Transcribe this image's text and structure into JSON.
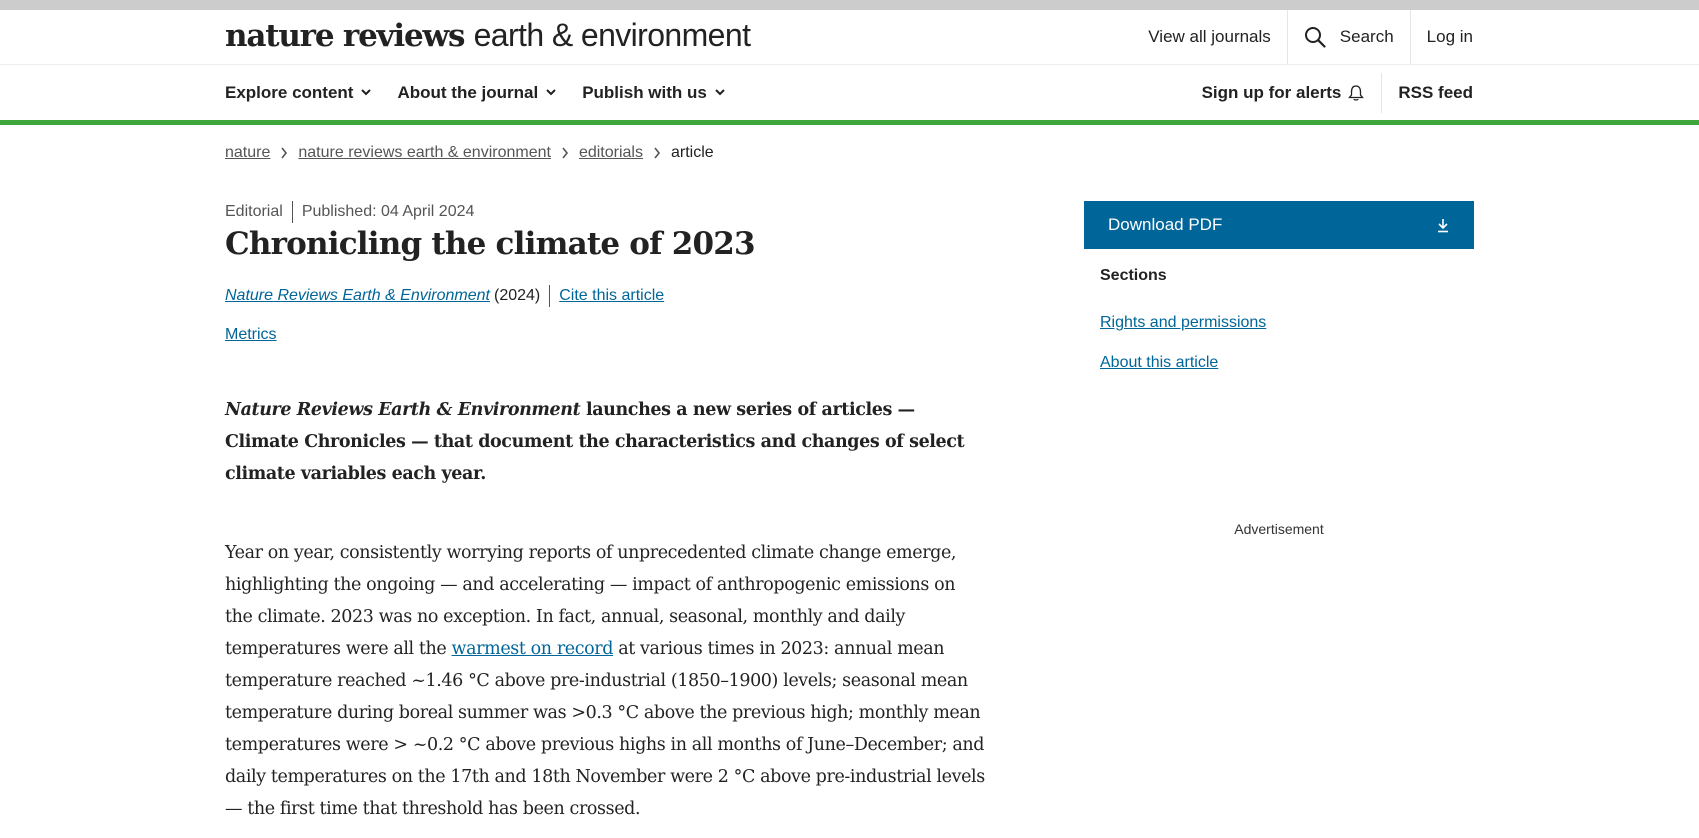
{
  "header": {
    "logo_bold": "nature reviews",
    "logo_light": "earth & environment",
    "links": {
      "view_all_journals": "View all journals",
      "search": "Search",
      "login": "Log in"
    }
  },
  "nav": {
    "items": [
      "Explore content",
      "About the journal",
      "Publish with us"
    ],
    "alerts": "Sign up for alerts",
    "rss": "RSS feed"
  },
  "breadcrumb": [
    "nature",
    "nature reviews earth & environment",
    "editorials",
    "article"
  ],
  "article": {
    "type": "Editorial",
    "published": "Published: 04 April 2024",
    "title": "Chronicling the climate of 2023",
    "journal": "Nature Reviews Earth & Environment",
    "year": "(2024)",
    "cite": "Cite this article",
    "metrics": "Metrics",
    "standfirst_journal": "Nature Reviews Earth & Environment",
    "standfirst_rest": " launches a new series of articles — Climate Chronicles — that document the characteristics and changes of select climate variables each year.",
    "para_before_link": "Year on year, consistently worrying reports of unprecedented climate change emerge, highlighting the ongoing — and accelerating — impact of anthropogenic emissions on the climate. 2023 was no exception. In fact, annual, seasonal, monthly and daily temperatures were all the ",
    "para_link": "warmest on record",
    "para_after_link": " at various times in 2023: annual mean temperature reached ~1.46 °C above pre-industrial (1850–1900) levels; seasonal mean temperature during boreal summer was >0.3 °C above the previous high; monthly mean temperatures were > ~0.2 °C above previous highs in all months of June–December; and daily temperatures on the 17th and 18th November were 2 °C above pre-industrial levels — the first time that threshold has been crossed."
  },
  "sidebar": {
    "download_pdf": "Download PDF",
    "sections_heading": "Sections",
    "links": [
      "Rights and permissions",
      "About this article"
    ],
    "advertisement": "Advertisement"
  },
  "colors": {
    "accent_green": "#3ea63a",
    "link_blue": "#006699",
    "button_blue": "#006699"
  }
}
